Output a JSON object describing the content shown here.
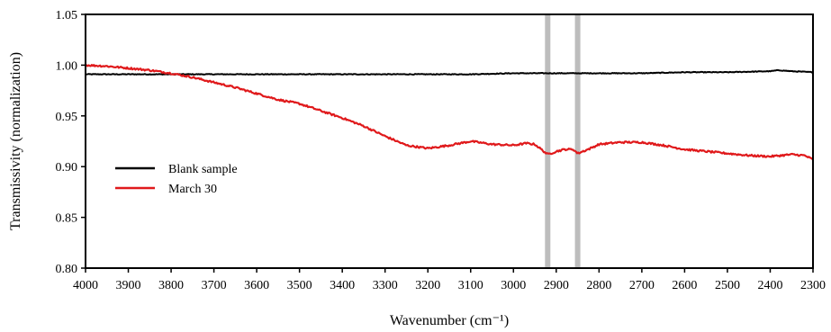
{
  "chart_data": {
    "type": "line",
    "xlabel": "Wavenumber (cm⁻¹)",
    "ylabel": "Transmissivity (normalization)",
    "xlim": [
      4000,
      2300
    ],
    "x_reversed": true,
    "ylim": [
      0.8,
      1.05
    ],
    "x_ticks": [
      4000,
      3900,
      3800,
      3700,
      3600,
      3500,
      3400,
      3300,
      3200,
      3100,
      3000,
      2900,
      2800,
      2700,
      2600,
      2500,
      2400,
      2300
    ],
    "y_ticks": [
      "0.80",
      "0.85",
      "0.90",
      "0.95",
      "1.00",
      "1.05"
    ],
    "grid": false,
    "legend_position": "left-center",
    "highlight_bands": [
      2920,
      2850
    ],
    "series": [
      {
        "name": "Blank sample",
        "color": "#000000",
        "x": [
          4000,
          3900,
          3800,
          3700,
          3600,
          3500,
          3400,
          3300,
          3200,
          3100,
          3000,
          2900,
          2800,
          2700,
          2600,
          2500,
          2400,
          2380,
          2350,
          2300
        ],
        "y": [
          0.991,
          0.991,
          0.991,
          0.991,
          0.991,
          0.991,
          0.991,
          0.991,
          0.991,
          0.991,
          0.992,
          0.992,
          0.992,
          0.992,
          0.993,
          0.993,
          0.994,
          0.995,
          0.994,
          0.993
        ]
      },
      {
        "name": "March 30",
        "color": "#e0191b",
        "x": [
          4000,
          3950,
          3900,
          3850,
          3800,
          3750,
          3700,
          3650,
          3600,
          3550,
          3500,
          3450,
          3400,
          3350,
          3300,
          3250,
          3200,
          3150,
          3100,
          3050,
          3000,
          2970,
          2950,
          2920,
          2900,
          2880,
          2860,
          2850,
          2820,
          2800,
          2750,
          2700,
          2650,
          2600,
          2550,
          2500,
          2450,
          2400,
          2350,
          2320,
          2300
        ],
        "y": [
          1.0,
          0.999,
          0.997,
          0.995,
          0.992,
          0.988,
          0.983,
          0.978,
          0.972,
          0.966,
          0.962,
          0.955,
          0.948,
          0.94,
          0.93,
          0.921,
          0.918,
          0.921,
          0.925,
          0.922,
          0.921,
          0.923,
          0.922,
          0.912,
          0.915,
          0.917,
          0.917,
          0.913,
          0.918,
          0.922,
          0.924,
          0.924,
          0.921,
          0.917,
          0.915,
          0.913,
          0.911,
          0.91,
          0.912,
          0.911,
          0.907
        ]
      }
    ]
  }
}
